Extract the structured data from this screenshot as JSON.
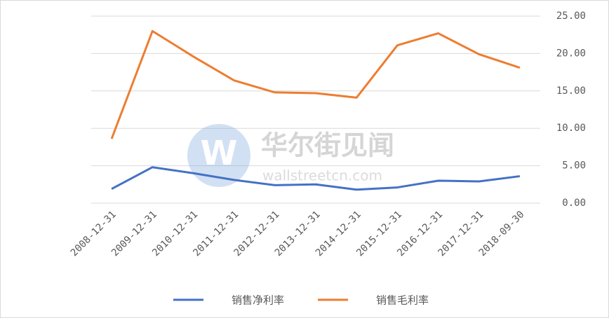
{
  "chart_data": {
    "type": "line",
    "categories": [
      "2008-12-31",
      "2009-12-31",
      "2010-12-31",
      "2011-12-31",
      "2012-12-31",
      "2013-12-31",
      "2014-12-31",
      "2015-12-31",
      "2016-12-31",
      "2017-12-31",
      "2018-09-30"
    ],
    "series": [
      {
        "name": "销售净利率",
        "color": "#4472c4",
        "values": [
          1.9,
          4.8,
          4.0,
          3.1,
          2.4,
          2.5,
          1.8,
          2.1,
          3.0,
          2.9,
          3.6
        ]
      },
      {
        "name": "销售毛利率",
        "color": "#ed7d31",
        "values": [
          8.6,
          23.0,
          19.6,
          16.4,
          14.8,
          14.7,
          14.1,
          21.1,
          22.7,
          19.9,
          18.1
        ]
      }
    ],
    "ylim": [
      0,
      25
    ],
    "yticks": [
      {
        "value": 0,
        "label": "0.00"
      },
      {
        "value": 5,
        "label": "5.00"
      },
      {
        "value": 10,
        "label": "10.00"
      },
      {
        "value": 15,
        "label": "15.00"
      },
      {
        "value": 20,
        "label": "20.00"
      },
      {
        "value": 25,
        "label": "25.00"
      }
    ],
    "grid": true,
    "legend": "bottom",
    "watermark": {
      "title": "华尔街见闻",
      "url": "wallstreetcn.com"
    }
  }
}
